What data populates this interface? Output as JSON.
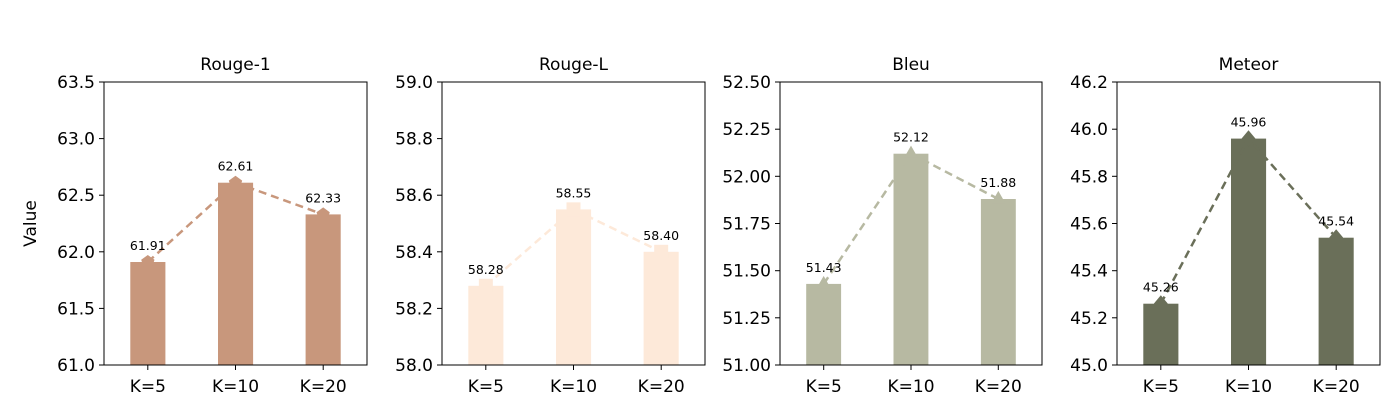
{
  "chart_data": [
    {
      "type": "bar",
      "title": "Rouge-1",
      "ylabel": "Value",
      "categories": [
        "K=5",
        "K=10",
        "K=20"
      ],
      "values": [
        61.91,
        62.61,
        62.33
      ],
      "value_labels": [
        "61.91",
        "62.61",
        "62.33"
      ],
      "ylim": [
        61.0,
        63.5
      ],
      "yticks": [
        "61.0",
        "61.5",
        "62.0",
        "62.5",
        "63.0",
        "63.5"
      ],
      "color": "#c8977c",
      "line_style": "dashed",
      "marker": "pentagon"
    },
    {
      "type": "bar",
      "title": "Rouge-L",
      "ylabel": "",
      "categories": [
        "K=5",
        "K=10",
        "K=20"
      ],
      "values": [
        58.28,
        58.55,
        58.4
      ],
      "value_labels": [
        "58.28",
        "58.55",
        "58.40"
      ],
      "ylim": [
        58.0,
        59.0
      ],
      "yticks": [
        "58.0",
        "58.2",
        "58.4",
        "58.6",
        "58.8",
        "59.0"
      ],
      "color": "#fde9d9",
      "line_style": "dashed",
      "marker": "square"
    },
    {
      "type": "bar",
      "title": "Bleu",
      "ylabel": "",
      "categories": [
        "K=5",
        "K=10",
        "K=20"
      ],
      "values": [
        51.43,
        52.12,
        51.88
      ],
      "value_labels": [
        "51.43",
        "52.12",
        "51.88"
      ],
      "ylim": [
        51.0,
        52.5
      ],
      "yticks": [
        "51.00",
        "51.25",
        "51.50",
        "51.75",
        "52.00",
        "52.25",
        "52.50"
      ],
      "color": "#b7b9a2",
      "line_style": "dashed",
      "marker": "triangle"
    },
    {
      "type": "bar",
      "title": "Meteor",
      "ylabel": "",
      "categories": [
        "K=5",
        "K=10",
        "K=20"
      ],
      "values": [
        45.26,
        45.96,
        45.54
      ],
      "value_labels": [
        "45.26",
        "45.96",
        "45.54"
      ],
      "ylim": [
        45.0,
        46.2
      ],
      "yticks": [
        "45.0",
        "45.2",
        "45.4",
        "45.6",
        "45.8",
        "46.0",
        "46.2"
      ],
      "color": "#6a6f59",
      "line_style": "dashed",
      "marker": "diamond"
    }
  ]
}
